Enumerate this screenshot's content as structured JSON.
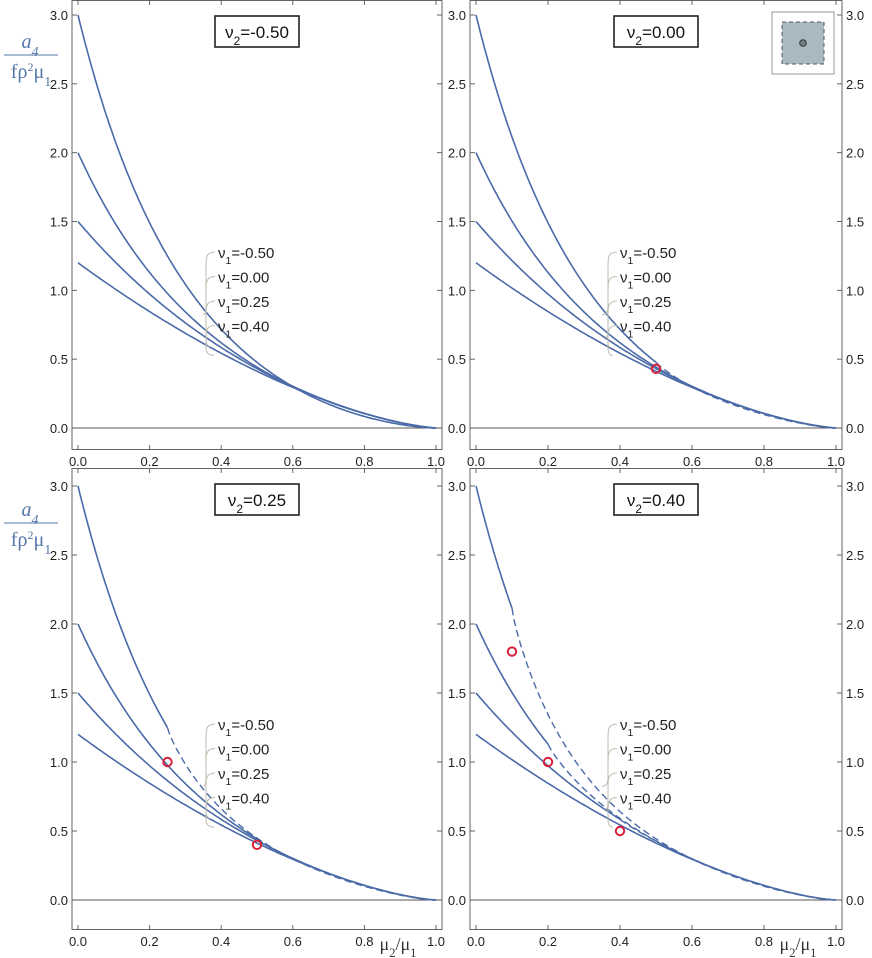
{
  "chart_data": {
    "type": "line",
    "layout": "2x2 grid of panels",
    "x_label": {
      "base": "μ",
      "num_sub": "2",
      "den_sub": "1"
    },
    "y_label": {
      "num": "a",
      "num_sub": "4",
      "den_f": "f",
      "den_rho": "ρ",
      "den_sup": "2",
      "den_mu": "μ",
      "den_sub": "1"
    },
    "xlim": [
      0,
      1
    ],
    "ylim": [
      0,
      3.0
    ],
    "xticks": [
      "0.0",
      "0.2",
      "0.4",
      "0.6",
      "0.8",
      "1.0"
    ],
    "yticks": [
      "0.0",
      "0.5",
      "1.0",
      "1.5",
      "2.0",
      "2.5",
      "3.0"
    ],
    "curve_labels": [
      {
        "sym": "ν",
        "sub": "1",
        "text": "=-0.50"
      },
      {
        "sym": "ν",
        "sub": "1",
        "text": "=0.00"
      },
      {
        "sym": "ν",
        "sub": "1",
        "text": "=0.25"
      },
      {
        "sym": "ν",
        "sub": "1",
        "text": "=0.40"
      }
    ],
    "series": [
      {
        "name": "ν1=-0.50",
        "y_at_0": 3.0,
        "values": [
          {
            "x": 0.0,
            "y": 3.0
          },
          {
            "x": 0.2,
            "y": 1.5
          },
          {
            "x": 0.4,
            "y": 0.71
          },
          {
            "x": 0.6,
            "y": 0.3
          },
          {
            "x": 0.8,
            "y": 0.11
          },
          {
            "x": 1.0,
            "y": 0.0
          }
        ]
      },
      {
        "name": "ν1=0.00",
        "y_at_0": 2.0,
        "values": [
          {
            "x": 0.0,
            "y": 2.0
          },
          {
            "x": 0.2,
            "y": 1.13
          },
          {
            "x": 0.4,
            "y": 0.62
          },
          {
            "x": 0.6,
            "y": 0.3
          },
          {
            "x": 0.8,
            "y": 0.11
          },
          {
            "x": 1.0,
            "y": 0.0
          }
        ]
      },
      {
        "name": "ν1=0.25",
        "y_at_0": 1.5,
        "values": [
          {
            "x": 0.0,
            "y": 1.5
          },
          {
            "x": 0.2,
            "y": 0.98
          },
          {
            "x": 0.4,
            "y": 0.58
          },
          {
            "x": 0.6,
            "y": 0.3
          },
          {
            "x": 0.8,
            "y": 0.11
          },
          {
            "x": 1.0,
            "y": 0.0
          }
        ]
      },
      {
        "name": "ν1=0.40",
        "y_at_0": 1.2,
        "values": [
          {
            "x": 0.0,
            "y": 1.2
          },
          {
            "x": 0.2,
            "y": 0.85
          },
          {
            "x": 0.4,
            "y": 0.54
          },
          {
            "x": 0.6,
            "y": 0.29
          },
          {
            "x": 0.8,
            "y": 0.11
          },
          {
            "x": 1.0,
            "y": 0.0
          }
        ]
      }
    ],
    "panels": [
      {
        "title_sym": "ν",
        "title_sub": "2",
        "title_text": "=-0.50",
        "nu2": -0.5,
        "transition_points": [],
        "show_inset": false
      },
      {
        "title_sym": "ν",
        "title_sub": "2",
        "title_text": "=0.00",
        "nu2": 0.0,
        "transition_points": [
          {
            "x": 0.5,
            "y": 0.43
          }
        ],
        "show_inset": true
      },
      {
        "title_sym": "ν",
        "title_sub": "2",
        "title_text": "=0.25",
        "nu2": 0.25,
        "transition_points": [
          {
            "x": 0.25,
            "y": 1.0
          },
          {
            "x": 0.5,
            "y": 0.4
          }
        ],
        "show_inset": false
      },
      {
        "title_sym": "ν",
        "title_sub": "2",
        "title_text": "=0.40",
        "nu2": 0.4,
        "transition_points": [
          {
            "x": 0.1,
            "y": 1.8
          },
          {
            "x": 0.2,
            "y": 1.0
          },
          {
            "x": 0.4,
            "y": 0.5
          }
        ],
        "show_inset": false
      }
    ],
    "notes": "Solid curves become dashed beyond red circle markers."
  },
  "colors": {
    "curve": "#4a6aa8",
    "marker": "#d8203a",
    "axis": "#555555",
    "callout": "#bdbdb0",
    "inset_fill": "#a9b9c0",
    "inset_dot": "#6f7f88",
    "ylabel": "#5577aa"
  }
}
